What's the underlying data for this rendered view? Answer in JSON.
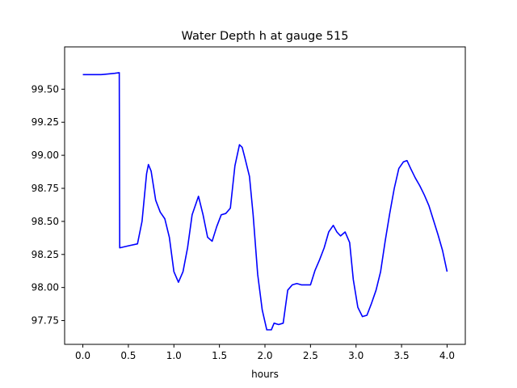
{
  "chart_data": {
    "type": "line",
    "title": "Water Depth h at gauge 515",
    "xlabel": "hours",
    "ylabel": "",
    "xlim": [
      -0.2,
      4.2
    ],
    "ylim": [
      97.57,
      99.82
    ],
    "xticks": [
      0.0,
      0.5,
      1.0,
      1.5,
      2.0,
      2.5,
      3.0,
      3.5,
      4.0
    ],
    "xtick_labels": [
      "0.0",
      "0.5",
      "1.0",
      "1.5",
      "2.0",
      "2.5",
      "3.0",
      "3.5",
      "4.0"
    ],
    "yticks": [
      97.75,
      98.0,
      98.25,
      98.5,
      98.75,
      99.0,
      99.25,
      99.5
    ],
    "ytick_labels": [
      "97.75",
      "98.00",
      "98.25",
      "98.50",
      "98.75",
      "99.00",
      "99.25",
      "99.50"
    ],
    "grid": false,
    "series": [
      {
        "name": "",
        "color": "#0000ff",
        "x": [
          0.0,
          0.2,
          0.35,
          0.4,
          0.405,
          0.5,
          0.6,
          0.65,
          0.7,
          0.72,
          0.75,
          0.8,
          0.85,
          0.9,
          0.95,
          1.0,
          1.05,
          1.1,
          1.15,
          1.2,
          1.27,
          1.32,
          1.37,
          1.42,
          1.47,
          1.52,
          1.57,
          1.62,
          1.67,
          1.72,
          1.75,
          1.78,
          1.83,
          1.87,
          1.92,
          1.97,
          2.02,
          2.07,
          2.1,
          2.15,
          2.2,
          2.25,
          2.3,
          2.35,
          2.4,
          2.45,
          2.5,
          2.55,
          2.6,
          2.65,
          2.7,
          2.75,
          2.79,
          2.83,
          2.88,
          2.93,
          2.97,
          3.02,
          3.07,
          3.12,
          3.17,
          3.22,
          3.27,
          3.32,
          3.37,
          3.42,
          3.47,
          3.52,
          3.56,
          3.6,
          3.65,
          3.7,
          3.75,
          3.8,
          3.85,
          3.9,
          3.95,
          4.0
        ],
        "y": [
          99.61,
          99.61,
          99.62,
          99.625,
          98.3,
          98.315,
          98.33,
          98.5,
          98.86,
          98.93,
          98.88,
          98.66,
          98.57,
          98.52,
          98.38,
          98.12,
          98.04,
          98.12,
          98.3,
          98.55,
          98.69,
          98.55,
          98.38,
          98.35,
          98.46,
          98.55,
          98.56,
          98.6,
          98.92,
          99.08,
          99.06,
          98.98,
          98.84,
          98.55,
          98.1,
          97.83,
          97.68,
          97.68,
          97.73,
          97.72,
          97.73,
          97.98,
          98.02,
          98.03,
          98.02,
          98.02,
          98.02,
          98.13,
          98.21,
          98.3,
          98.42,
          98.47,
          98.42,
          98.39,
          98.42,
          98.34,
          98.06,
          97.85,
          97.78,
          97.79,
          97.88,
          97.98,
          98.12,
          98.35,
          98.56,
          98.75,
          98.9,
          98.95,
          98.96,
          98.9,
          98.83,
          98.77,
          98.7,
          98.62,
          98.51,
          98.4,
          98.28,
          98.12
        ]
      }
    ]
  }
}
